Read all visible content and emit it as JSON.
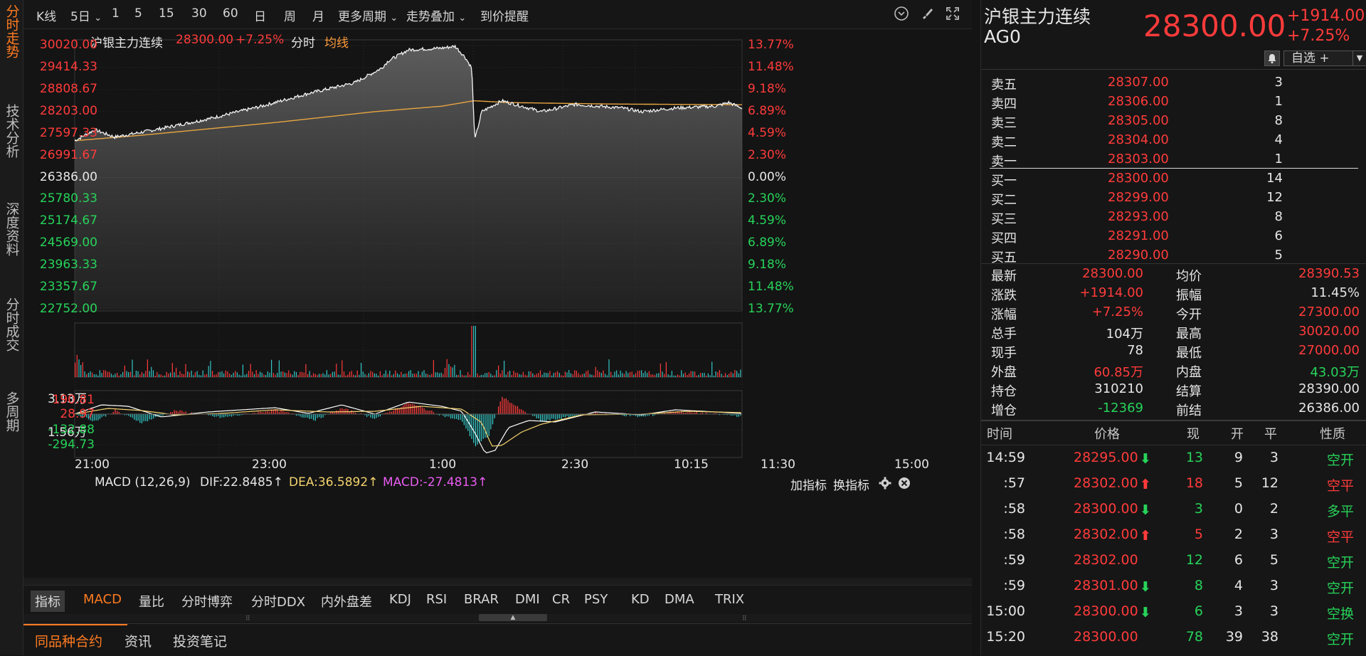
{
  "left_nav": [
    "分时走势",
    "技术分析",
    "深度资料",
    "分时成交",
    "多周期"
  ],
  "toolbar": {
    "items": [
      "K线",
      "5日",
      "1",
      "5",
      "15",
      "30",
      "60",
      "日",
      "周",
      "月",
      "更多周期",
      "走势叠加",
      "到价提醒"
    ],
    "dropdown_marks": [
      "5日",
      "更多周期",
      "走势叠加"
    ]
  },
  "chart_header": {
    "name": "沪银主力连续",
    "price": "28300.00",
    "pct": "+7.25%",
    "mode": "分时",
    "avg_label": "均线"
  },
  "price_axis": {
    "left": [
      "30020.00",
      "29414.33",
      "28808.67",
      "28203.00",
      "27597.33",
      "26991.67",
      "26386.00",
      "25780.33",
      "25174.67",
      "24569.00",
      "23963.33",
      "23357.67",
      "22752.00"
    ],
    "right": [
      "13.77%",
      "11.48%",
      "9.18%",
      "6.89%",
      "4.59%",
      "2.30%",
      "0.00%",
      "2.30%",
      "4.59%",
      "6.89%",
      "9.18%",
      "11.48%",
      "13.77%"
    ]
  },
  "volume_axis": [
    "3.13万",
    "1.56万"
  ],
  "macd_header": {
    "name": "MACD (12,26,9)",
    "dif": "DIF:22.8485",
    "dea": "DEA:36.5892",
    "macd": "MACD:-27.4813",
    "add": "加指标",
    "switch": "换指标"
  },
  "macd_axis": [
    "190.81",
    "28.97",
    "-132.88",
    "-294.73"
  ],
  "time_axis": [
    "21:00",
    "23:00",
    "1:00",
    "2:30",
    "10:15",
    "11:30",
    "15:00"
  ],
  "chart_data": {
    "type": "line",
    "title": "沪银主力连续",
    "x": [
      "21:00",
      "23:00",
      "1:00",
      "2:30",
      "10:15",
      "11:30",
      "15:00"
    ],
    "ylim": [
      22752.0,
      30020.0
    ],
    "series": [
      {
        "name": "分时",
        "values": [
          27400,
          28000,
          29600,
          29700,
          28350,
          28200,
          28300
        ]
      },
      {
        "name": "均线",
        "values": [
          27400,
          27700,
          28100,
          28400,
          28420,
          28400,
          28390
        ]
      }
    ]
  },
  "indicator_tabs": [
    "指标",
    "MACD",
    "量比",
    "分时博弈",
    "分时DDX",
    "内外盘差",
    "KDJ",
    "RSI",
    "BRAR",
    "DMI",
    "CR",
    "PSY",
    "KD",
    "DMA",
    "TRIX"
  ],
  "bottom_tabs": [
    "同品种合约",
    "资讯",
    "投资笔记"
  ],
  "quote": {
    "name": "沪银主力连续",
    "code": "AG0",
    "price": "28300.00",
    "change": "+1914.00",
    "pct": "+7.25%",
    "watch": "自选 +"
  },
  "orderbook": {
    "asks": [
      {
        "label": "卖五",
        "price": "28307.00",
        "vol": "3"
      },
      {
        "label": "卖四",
        "price": "28306.00",
        "vol": "1"
      },
      {
        "label": "卖三",
        "price": "28305.00",
        "vol": "8"
      },
      {
        "label": "卖二",
        "price": "28304.00",
        "vol": "4"
      },
      {
        "label": "卖一",
        "price": "28303.00",
        "vol": "1"
      }
    ],
    "bids": [
      {
        "label": "买一",
        "price": "28300.00",
        "vol": "14"
      },
      {
        "label": "买二",
        "price": "28299.00",
        "vol": "12"
      },
      {
        "label": "买三",
        "price": "28293.00",
        "vol": "8"
      },
      {
        "label": "买四",
        "price": "28291.00",
        "vol": "6"
      },
      {
        "label": "买五",
        "price": "28290.00",
        "vol": "5"
      }
    ]
  },
  "stats": [
    {
      "l1": "最新",
      "v1": "28300.00",
      "l2": "均价",
      "v2": "28390.53"
    },
    {
      "l1": "涨跌",
      "v1": "+1914.00",
      "l2": "振幅",
      "v2": "11.45%"
    },
    {
      "l1": "涨幅",
      "v1": "+7.25%",
      "l2": "今开",
      "v2": "27300.00"
    },
    {
      "l1": "总手",
      "v1": "104万",
      "l2": "最高",
      "v2": "30020.00"
    },
    {
      "l1": "现手",
      "v1": "78",
      "l2": "最低",
      "v2": "27000.00"
    },
    {
      "l1": "外盘",
      "v1": "60.85万",
      "l2": "内盘",
      "v2": "43.03万"
    },
    {
      "l1": "持仓",
      "v1": "310210",
      "l2": "结算",
      "v2": "28390.00"
    },
    {
      "l1": "增仓",
      "v1": "-12369",
      "l2": "前结",
      "v2": "26386.00"
    }
  ],
  "ticks_header": [
    "时间",
    "价格",
    "现",
    "开",
    "平",
    "性质"
  ],
  "ticks": [
    {
      "time": "14:59",
      "price": "28295.00",
      "dir": "down",
      "now": "13",
      "open": "9",
      "close": "3",
      "nature": "空开"
    },
    {
      "time": ":57",
      "price": "28302.00",
      "dir": "up",
      "now": "18",
      "open": "5",
      "close": "12",
      "nature": "空平"
    },
    {
      "time": ":58",
      "price": "28300.00",
      "dir": "down",
      "now": "3",
      "open": "0",
      "close": "2",
      "nature": "多平"
    },
    {
      "time": ":58",
      "price": "28302.00",
      "dir": "up",
      "now": "5",
      "open": "2",
      "close": "3",
      "nature": "空平"
    },
    {
      "time": ":59",
      "price": "28302.00",
      "dir": "",
      "now": "12",
      "open": "6",
      "close": "5",
      "nature": "空开"
    },
    {
      "time": ":59",
      "price": "28301.00",
      "dir": "down",
      "now": "8",
      "open": "4",
      "close": "3",
      "nature": "空开"
    },
    {
      "time": "15:00",
      "price": "28300.00",
      "dir": "down",
      "now": "6",
      "open": "3",
      "close": "3",
      "nature": "空换"
    },
    {
      "time": "15:20",
      "price": "28300.00",
      "dir": "",
      "now": "78",
      "open": "39",
      "close": "38",
      "nature": "空开"
    }
  ]
}
